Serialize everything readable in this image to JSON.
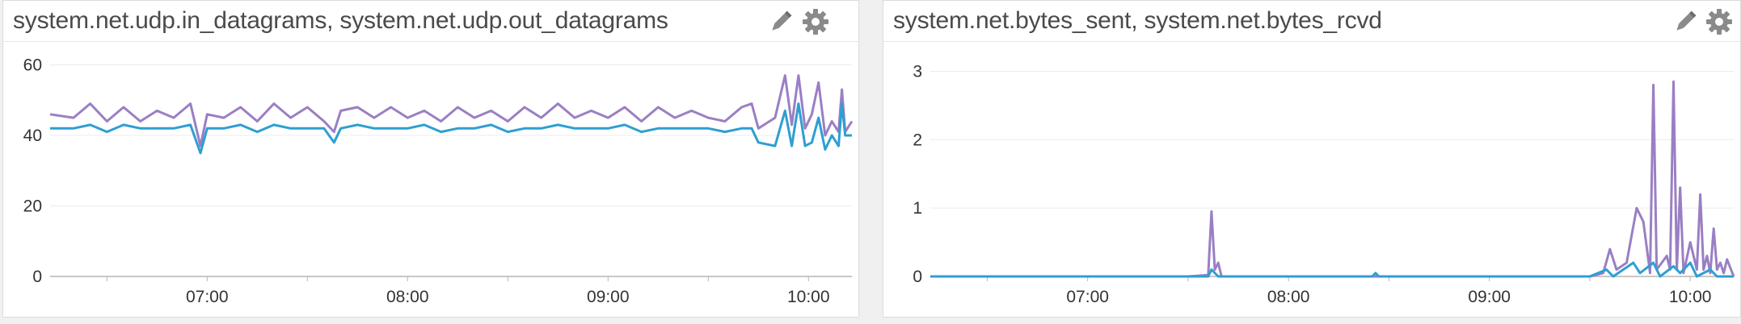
{
  "widgets": [
    {
      "title": "system.net.udp.in_datagrams, system.net.udp.out_datagrams",
      "edit_icon": "pencil-icon",
      "settings_icon": "gear-icon"
    },
    {
      "title": "system.net.bytes_sent, system.net.bytes_rcvd",
      "edit_icon": "pencil-icon",
      "settings_icon": "gear-icon"
    }
  ],
  "colors": {
    "series_a": "#9a7fc4",
    "series_b": "#2e9fd1"
  },
  "chart_data": [
    {
      "type": "line",
      "title": "system.net.udp.in_datagrams, system.net.udp.out_datagrams",
      "x_ticks": [
        "07:00",
        "08:00",
        "09:00",
        "10:00"
      ],
      "x_range": [
        "06:13",
        "10:13"
      ],
      "y_ticks": [
        0,
        20,
        40,
        60
      ],
      "ylim": [
        0,
        64
      ],
      "grid": true,
      "series": [
        {
          "color": "#9a7fc4",
          "points": [
            [
              "06:13",
              46
            ],
            [
              "06:20",
              45
            ],
            [
              "06:25",
              49
            ],
            [
              "06:30",
              44
            ],
            [
              "06:35",
              48
            ],
            [
              "06:40",
              44
            ],
            [
              "06:45",
              47
            ],
            [
              "06:50",
              45
            ],
            [
              "06:55",
              49
            ],
            [
              "06:58",
              37
            ],
            [
              "07:00",
              46
            ],
            [
              "07:05",
              45
            ],
            [
              "07:10",
              48
            ],
            [
              "07:15",
              44
            ],
            [
              "07:20",
              49
            ],
            [
              "07:25",
              45
            ],
            [
              "07:30",
              48
            ],
            [
              "07:35",
              44
            ],
            [
              "07:38",
              41
            ],
            [
              "07:40",
              47
            ],
            [
              "07:45",
              48
            ],
            [
              "07:50",
              45
            ],
            [
              "07:55",
              48
            ],
            [
              "08:00",
              45
            ],
            [
              "08:05",
              47
            ],
            [
              "08:10",
              44
            ],
            [
              "08:15",
              48
            ],
            [
              "08:20",
              45
            ],
            [
              "08:25",
              47
            ],
            [
              "08:30",
              44
            ],
            [
              "08:35",
              48
            ],
            [
              "08:40",
              45
            ],
            [
              "08:45",
              49
            ],
            [
              "08:50",
              45
            ],
            [
              "08:55",
              47
            ],
            [
              "09:00",
              45
            ],
            [
              "09:05",
              48
            ],
            [
              "09:10",
              44
            ],
            [
              "09:15",
              48
            ],
            [
              "09:20",
              45
            ],
            [
              "09:25",
              47
            ],
            [
              "09:30",
              45
            ],
            [
              "09:35",
              44
            ],
            [
              "09:40",
              48
            ],
            [
              "09:43",
              49
            ],
            [
              "09:45",
              42
            ],
            [
              "09:50",
              45
            ],
            [
              "09:53",
              57
            ],
            [
              "09:55",
              43
            ],
            [
              "09:57",
              57
            ],
            [
              "09:59",
              42
            ],
            [
              "10:01",
              46
            ],
            [
              "10:03",
              55
            ],
            [
              "10:05",
              40
            ],
            [
              "10:07",
              44
            ],
            [
              "10:09",
              41
            ],
            [
              "10:10",
              53
            ],
            [
              "10:11",
              41
            ],
            [
              "10:13",
              44
            ]
          ]
        },
        {
          "color": "#2e9fd1",
          "points": [
            [
              "06:13",
              42
            ],
            [
              "06:20",
              42
            ],
            [
              "06:25",
              43
            ],
            [
              "06:30",
              41
            ],
            [
              "06:35",
              43
            ],
            [
              "06:40",
              42
            ],
            [
              "06:45",
              42
            ],
            [
              "06:50",
              42
            ],
            [
              "06:55",
              43
            ],
            [
              "06:58",
              35
            ],
            [
              "07:00",
              42
            ],
            [
              "07:05",
              42
            ],
            [
              "07:10",
              43
            ],
            [
              "07:15",
              41
            ],
            [
              "07:20",
              43
            ],
            [
              "07:25",
              42
            ],
            [
              "07:30",
              42
            ],
            [
              "07:35",
              42
            ],
            [
              "07:38",
              38
            ],
            [
              "07:40",
              42
            ],
            [
              "07:45",
              43
            ],
            [
              "07:50",
              42
            ],
            [
              "07:55",
              42
            ],
            [
              "08:00",
              42
            ],
            [
              "08:05",
              43
            ],
            [
              "08:10",
              41
            ],
            [
              "08:15",
              42
            ],
            [
              "08:20",
              42
            ],
            [
              "08:25",
              43
            ],
            [
              "08:30",
              41
            ],
            [
              "08:35",
              42
            ],
            [
              "08:40",
              42
            ],
            [
              "08:45",
              43
            ],
            [
              "08:50",
              42
            ],
            [
              "08:55",
              42
            ],
            [
              "09:00",
              42
            ],
            [
              "09:05",
              43
            ],
            [
              "09:10",
              41
            ],
            [
              "09:15",
              42
            ],
            [
              "09:20",
              42
            ],
            [
              "09:25",
              42
            ],
            [
              "09:30",
              42
            ],
            [
              "09:35",
              41
            ],
            [
              "09:40",
              42
            ],
            [
              "09:43",
              42
            ],
            [
              "09:45",
              38
            ],
            [
              "09:50",
              37
            ],
            [
              "09:53",
              47
            ],
            [
              "09:55",
              37
            ],
            [
              "09:57",
              49
            ],
            [
              "09:59",
              37
            ],
            [
              "10:01",
              38
            ],
            [
              "10:03",
              45
            ],
            [
              "10:05",
              36
            ],
            [
              "10:07",
              40
            ],
            [
              "10:09",
              37
            ],
            [
              "10:10",
              49
            ],
            [
              "10:11",
              40
            ],
            [
              "10:13",
              40
            ]
          ]
        }
      ]
    },
    {
      "type": "line",
      "title": "system.net.bytes_sent, system.net.bytes_rcvd",
      "x_ticks": [
        "07:00",
        "08:00",
        "09:00",
        "10:00"
      ],
      "x_range": [
        "06:13",
        "10:13"
      ],
      "y_ticks": [
        0,
        1,
        2,
        3
      ],
      "ylim": [
        0,
        3.3
      ],
      "grid": true,
      "series": [
        {
          "color": "#9a7fc4",
          "points": [
            [
              "06:13",
              0
            ],
            [
              "07:30",
              0
            ],
            [
              "07:36",
              0.02
            ],
            [
              "07:37",
              0.95
            ],
            [
              "07:38",
              0.1
            ],
            [
              "07:39",
              0.2
            ],
            [
              "07:40",
              0
            ],
            [
              "09:30",
              0
            ],
            [
              "09:34",
              0.05
            ],
            [
              "09:36",
              0.4
            ],
            [
              "09:38",
              0.1
            ],
            [
              "09:41",
              0.2
            ],
            [
              "09:44",
              1.0
            ],
            [
              "09:46",
              0.8
            ],
            [
              "09:48",
              0.05
            ],
            [
              "09:49",
              2.8
            ],
            [
              "09:50",
              0.1
            ],
            [
              "09:53",
              0.3
            ],
            [
              "09:54",
              0.1
            ],
            [
              "09:55",
              2.85
            ],
            [
              "09:56",
              0.1
            ],
            [
              "09:57",
              1.3
            ],
            [
              "09:58",
              0.05
            ],
            [
              "10:00",
              0.5
            ],
            [
              "10:02",
              0.1
            ],
            [
              "10:03",
              1.2
            ],
            [
              "10:04",
              0.1
            ],
            [
              "10:05",
              0.3
            ],
            [
              "10:06",
              0.05
            ],
            [
              "10:07",
              0.7
            ],
            [
              "10:08",
              0.1
            ],
            [
              "10:09",
              0.2
            ],
            [
              "10:10",
              0.05
            ],
            [
              "10:11",
              0.25
            ],
            [
              "10:13",
              0
            ]
          ]
        },
        {
          "color": "#2e9fd1",
          "points": [
            [
              "06:13",
              0
            ],
            [
              "07:36",
              0
            ],
            [
              "07:37",
              0.1
            ],
            [
              "07:39",
              0
            ],
            [
              "08:25",
              0
            ],
            [
              "08:26",
              0.05
            ],
            [
              "08:27",
              0
            ],
            [
              "09:30",
              0
            ],
            [
              "09:35",
              0.1
            ],
            [
              "09:37",
              0
            ],
            [
              "09:43",
              0.2
            ],
            [
              "09:45",
              0.05
            ],
            [
              "09:49",
              0.2
            ],
            [
              "09:51",
              0
            ],
            [
              "09:55",
              0.15
            ],
            [
              "09:57",
              0.05
            ],
            [
              "10:00",
              0.2
            ],
            [
              "10:02",
              0
            ],
            [
              "10:06",
              0.1
            ],
            [
              "10:08",
              0
            ],
            [
              "10:13",
              0
            ]
          ]
        }
      ]
    }
  ]
}
